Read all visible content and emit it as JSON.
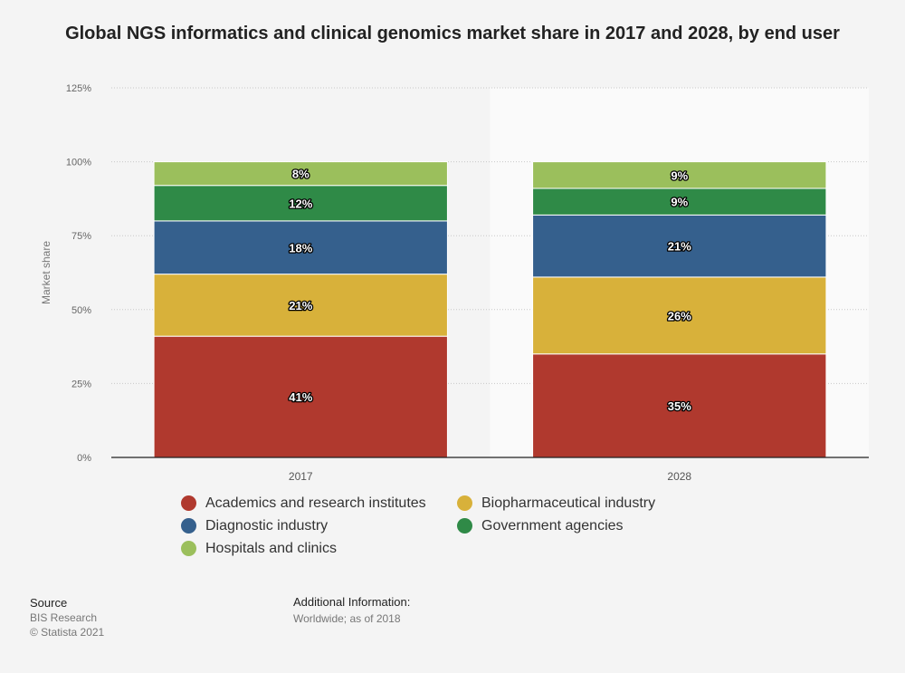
{
  "chart_data": {
    "type": "bar",
    "stacked": true,
    "title": "Global NGS informatics and clinical genomics market share in 2017 and 2028, by end user",
    "ylabel": "Market share",
    "xlabel": "",
    "ylim": [
      0,
      125
    ],
    "yticks": [
      "0%",
      "25%",
      "50%",
      "75%",
      "100%",
      "125%"
    ],
    "categories": [
      "2017",
      "2028"
    ],
    "series": [
      {
        "name": "Academics and research institutes",
        "color": "#b0392e",
        "values": [
          41,
          35
        ],
        "labels": [
          "41%",
          "35%"
        ]
      },
      {
        "name": "Biopharmaceutical industry",
        "color": "#d8b13a",
        "values": [
          21,
          26
        ],
        "labels": [
          "21%",
          "26%"
        ]
      },
      {
        "name": "Diagnostic industry",
        "color": "#35608d",
        "values": [
          18,
          21
        ],
        "labels": [
          "18%",
          "21%"
        ]
      },
      {
        "name": "Government agencies",
        "color": "#2f8a47",
        "values": [
          12,
          9
        ],
        "labels": [
          "12%",
          "9%"
        ]
      },
      {
        "name": "Hospitals and clinics",
        "color": "#9bbf5c",
        "values": [
          8,
          9
        ],
        "labels": [
          "8%",
          "9%"
        ]
      }
    ],
    "grid": true,
    "legend_position": "bottom"
  },
  "source": {
    "heading": "Source",
    "name": "BIS Research",
    "copyright": "© Statista 2021"
  },
  "additional_info": {
    "heading": "Additional Information:",
    "text": "Worldwide; as of 2018"
  }
}
